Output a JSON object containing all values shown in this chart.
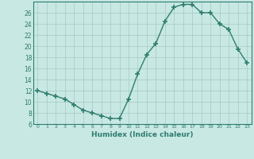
{
  "x": [
    0,
    1,
    2,
    3,
    4,
    5,
    6,
    7,
    8,
    9,
    10,
    11,
    12,
    13,
    14,
    15,
    16,
    17,
    18,
    19,
    20,
    21,
    22,
    23
  ],
  "y": [
    12,
    11.5,
    11,
    10.5,
    9.5,
    8.5,
    8,
    7.5,
    7,
    7,
    10.5,
    15,
    18.5,
    20.5,
    24.5,
    27,
    27.5,
    27.5,
    26,
    26,
    24,
    23,
    19.5,
    17
  ],
  "line_color": "#2e7d6e",
  "marker": "+",
  "markersize": 4,
  "linewidth": 1.0,
  "bg_color": "#c8e8e4",
  "grid_color": "#a8c8c4",
  "xlabel": "Humidex (Indice chaleur)",
  "ylim": [
    6,
    28
  ],
  "xlim": [
    -0.5,
    23.5
  ],
  "yticks": [
    6,
    8,
    10,
    12,
    14,
    16,
    18,
    20,
    22,
    24,
    26
  ],
  "xticks": [
    0,
    1,
    2,
    3,
    4,
    5,
    6,
    7,
    8,
    9,
    10,
    11,
    12,
    13,
    14,
    15,
    16,
    17,
    18,
    19,
    20,
    21,
    22,
    23
  ]
}
